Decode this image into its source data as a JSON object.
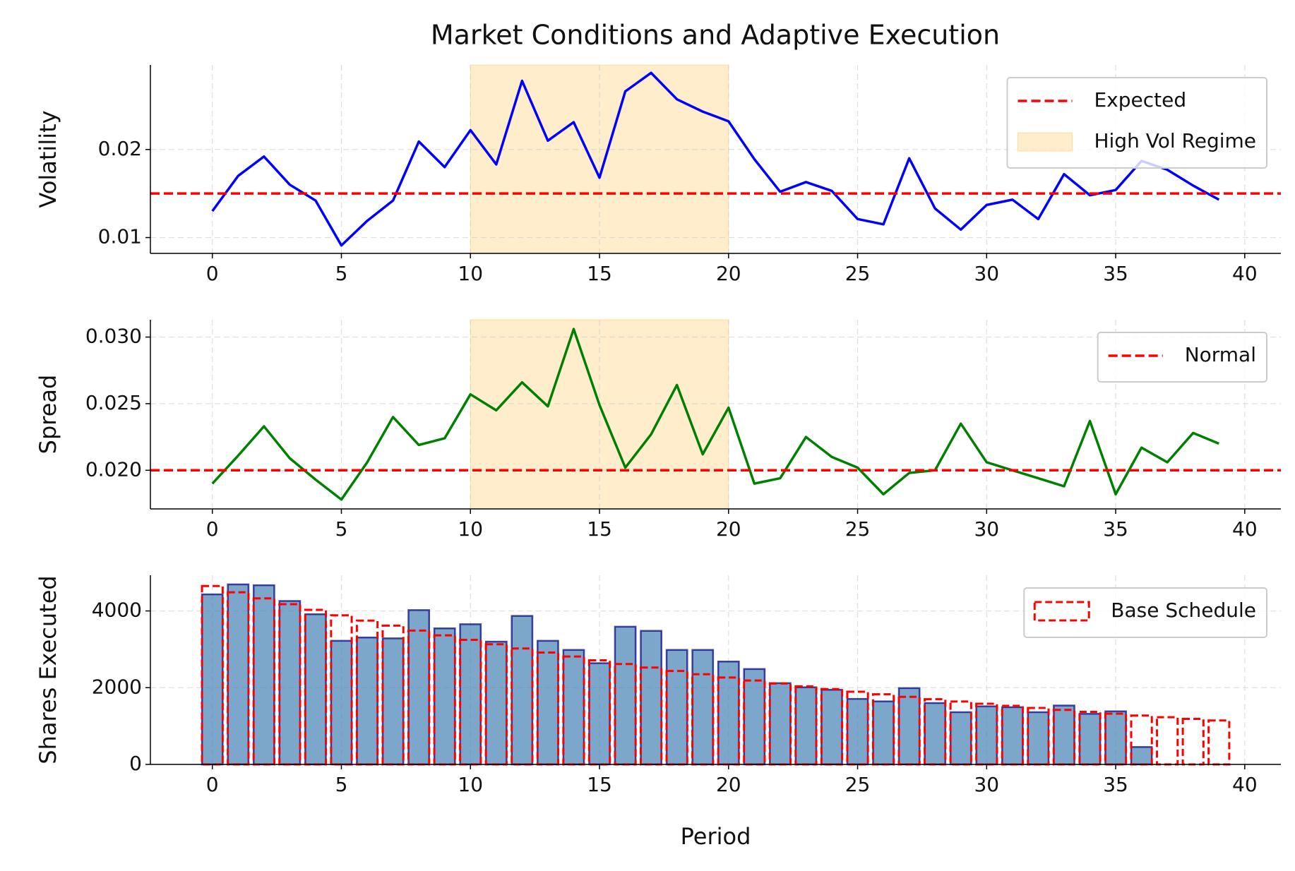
{
  "chart_data": [
    {
      "type": "line",
      "title": "Market Conditions and Adaptive Execution",
      "ylabel": "Volatility",
      "x": [
        0,
        1,
        2,
        3,
        4,
        5,
        6,
        7,
        8,
        9,
        10,
        11,
        12,
        13,
        14,
        15,
        16,
        17,
        18,
        19,
        20,
        21,
        22,
        23,
        24,
        25,
        26,
        27,
        28,
        29,
        30,
        31,
        32,
        33,
        34,
        35,
        36,
        37,
        38,
        39
      ],
      "series": [
        {
          "color": "blue",
          "values": [
            0.013,
            0.017,
            0.0192,
            0.016,
            0.0142,
            0.0091,
            0.0119,
            0.0142,
            0.0209,
            0.018,
            0.0222,
            0.0183,
            0.0278,
            0.021,
            0.0231,
            0.0168,
            0.0266,
            0.0287,
            0.0257,
            0.0243,
            0.0232,
            0.0189,
            0.0152,
            0.0163,
            0.0153,
            0.0121,
            0.0115,
            0.019,
            0.0133,
            0.0109,
            0.0137,
            0.0143,
            0.0121,
            0.0172,
            0.0148,
            0.0154,
            0.0187,
            0.0177,
            0.0159,
            0.0143
          ]
        }
      ],
      "hlines": [
        {
          "name": "Expected",
          "y": 0.015,
          "color": "red"
        }
      ],
      "spans": [
        {
          "name": "High Vol Regime",
          "x0": 10,
          "x1": 20,
          "color": "orange"
        }
      ],
      "xlim": [
        -2.4,
        41.4
      ],
      "xticks": [
        0,
        5,
        10,
        15,
        20,
        25,
        30,
        35,
        40
      ],
      "ylim": [
        0.0082,
        0.0296
      ],
      "yticks": [
        0.01,
        0.02
      ],
      "grid": true,
      "legend": "upper right"
    },
    {
      "type": "line",
      "ylabel": "Spread",
      "x": [
        0,
        1,
        2,
        3,
        4,
        5,
        6,
        7,
        8,
        9,
        10,
        11,
        12,
        13,
        14,
        15,
        16,
        17,
        18,
        19,
        20,
        21,
        22,
        23,
        24,
        25,
        26,
        27,
        28,
        29,
        30,
        31,
        32,
        33,
        34,
        35,
        36,
        37,
        38,
        39
      ],
      "series": [
        {
          "color": "green",
          "values": [
            0.019,
            0.0211,
            0.0233,
            0.0209,
            0.0193,
            0.0178,
            0.0206,
            0.024,
            0.0219,
            0.0224,
            0.0257,
            0.0245,
            0.0266,
            0.0248,
            0.0306,
            0.0249,
            0.0202,
            0.0227,
            0.0264,
            0.0212,
            0.0247,
            0.019,
            0.0194,
            0.0225,
            0.021,
            0.0202,
            0.0182,
            0.0198,
            0.02,
            0.0235,
            0.0206,
            0.02,
            0.0194,
            0.0188,
            0.0237,
            0.0182,
            0.0217,
            0.0206,
            0.0228,
            0.022
          ]
        }
      ],
      "hlines": [
        {
          "name": "Normal",
          "y": 0.02,
          "color": "red"
        }
      ],
      "spans": [
        {
          "x0": 10,
          "x1": 20,
          "color": "orange"
        }
      ],
      "xlim": [
        -2.4,
        41.4
      ],
      "xticks": [
        0,
        5,
        10,
        15,
        20,
        25,
        30,
        35,
        40
      ],
      "ylim": [
        0.0171,
        0.0313
      ],
      "yticks": [
        {
          "value": 0.02,
          "label": "0.020"
        },
        {
          "value": 0.025,
          "label": "0.025"
        },
        {
          "value": 0.03,
          "label": "0.030"
        }
      ],
      "grid": true,
      "legend": "upper right"
    },
    {
      "type": "bar",
      "ylabel": "Shares Executed",
      "xlabel": "Period",
      "x": [
        0,
        1,
        2,
        3,
        4,
        5,
        6,
        7,
        8,
        9,
        10,
        11,
        12,
        13,
        14,
        15,
        16,
        17,
        18,
        19,
        20,
        21,
        22,
        23,
        24,
        25,
        26,
        27,
        28,
        29,
        30,
        31,
        32,
        33,
        34,
        35,
        36,
        37,
        38,
        39
      ],
      "series": [
        {
          "color": "steelblue",
          "edgecolor": "navy",
          "values": [
            4432,
            4692,
            4670,
            4259,
            3914,
            3222,
            3308,
            3286,
            4022,
            3546,
            3654,
            3200,
            3870,
            3222,
            2984,
            2638,
            3589,
            3481,
            2984,
            2984,
            2681,
            2486,
            2119,
            2011,
            1946,
            1708,
            1643,
            1989,
            1600,
            1362,
            1514,
            1492,
            1362,
            1535,
            1319,
            1384,
            454,
            0,
            0,
            0
          ]
        },
        {
          "name": "Base Schedule",
          "color": "red",
          "style": "dashed",
          "values": [
            4650,
            4486,
            4328,
            4175,
            4028,
            3886,
            3748,
            3616,
            3488,
            3365,
            3247,
            3132,
            3021,
            2915,
            2812,
            2713,
            2617,
            2524,
            2435,
            2349,
            2266,
            2186,
            2109,
            2035,
            1963,
            1894,
            1827,
            1762,
            1700,
            1640,
            1582,
            1526,
            1472,
            1420,
            1370,
            1322,
            1275,
            1230,
            1187,
            1145
          ]
        }
      ],
      "xlim": [
        -2.4,
        41.4
      ],
      "xticks": [
        0,
        5,
        10,
        15,
        20,
        25,
        30,
        35,
        40
      ],
      "ylim": [
        0,
        4930
      ],
      "yticks": [
        0,
        2000,
        4000
      ],
      "grid": true,
      "legend": "upper right"
    }
  ]
}
